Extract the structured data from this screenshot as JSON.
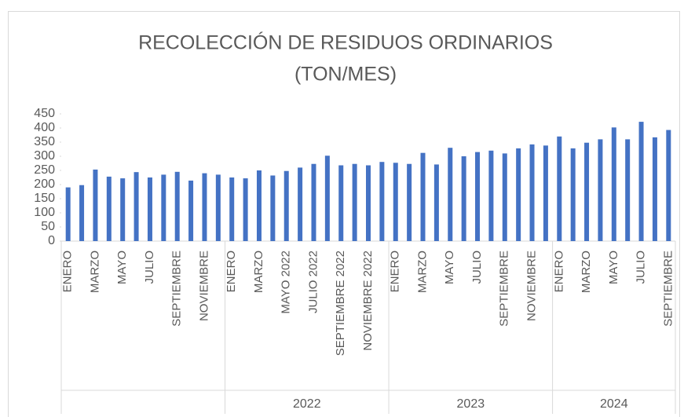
{
  "chart_data": {
    "type": "bar",
    "title": [
      "RECOLECCIÓN DE RESIDUOS ORDINARIOS",
      "(TON/MES)"
    ],
    "color": "#4472c4",
    "ylim": [
      0,
      450
    ],
    "yticks": [
      0,
      50,
      100,
      150,
      200,
      250,
      300,
      350,
      400,
      450
    ],
    "groups": [
      {
        "label": null,
        "categories": [
          "ENERO",
          null,
          "MARZO",
          null,
          "MAYO",
          null,
          "JULIO",
          null,
          "SEPTIEMBRE",
          null,
          "NOVIEMBRE",
          null
        ],
        "values": [
          190,
          198,
          253,
          228,
          222,
          244,
          225,
          235,
          245,
          214,
          240,
          235
        ]
      },
      {
        "label": "2022",
        "categories": [
          "ENERO",
          null,
          "MARZO",
          null,
          "MAYO 2022",
          null,
          "JULIO 2022",
          null,
          "SEPTIEMBRE 2022",
          null,
          "NOVIEMBRE 2022",
          null
        ],
        "values": [
          225,
          222,
          250,
          232,
          248,
          260,
          273,
          302,
          268,
          273,
          268,
          280
        ]
      },
      {
        "label": "2023",
        "categories": [
          "ENERO",
          null,
          "MARZO",
          null,
          "MAYO",
          null,
          "JULIO",
          null,
          "SEPTIEMBRE",
          null,
          "NOVIEMBRE",
          null
        ],
        "values": [
          277,
          273,
          312,
          271,
          330,
          300,
          315,
          320,
          310,
          328,
          342,
          338
        ]
      },
      {
        "label": "2024",
        "categories": [
          "ENERO",
          null,
          "MARZO",
          null,
          "MAYO",
          null,
          "JULIO",
          null,
          "SEPTIEMBRE"
        ],
        "values": [
          370,
          328,
          348,
          360,
          402,
          360,
          422,
          367,
          393
        ]
      }
    ]
  }
}
